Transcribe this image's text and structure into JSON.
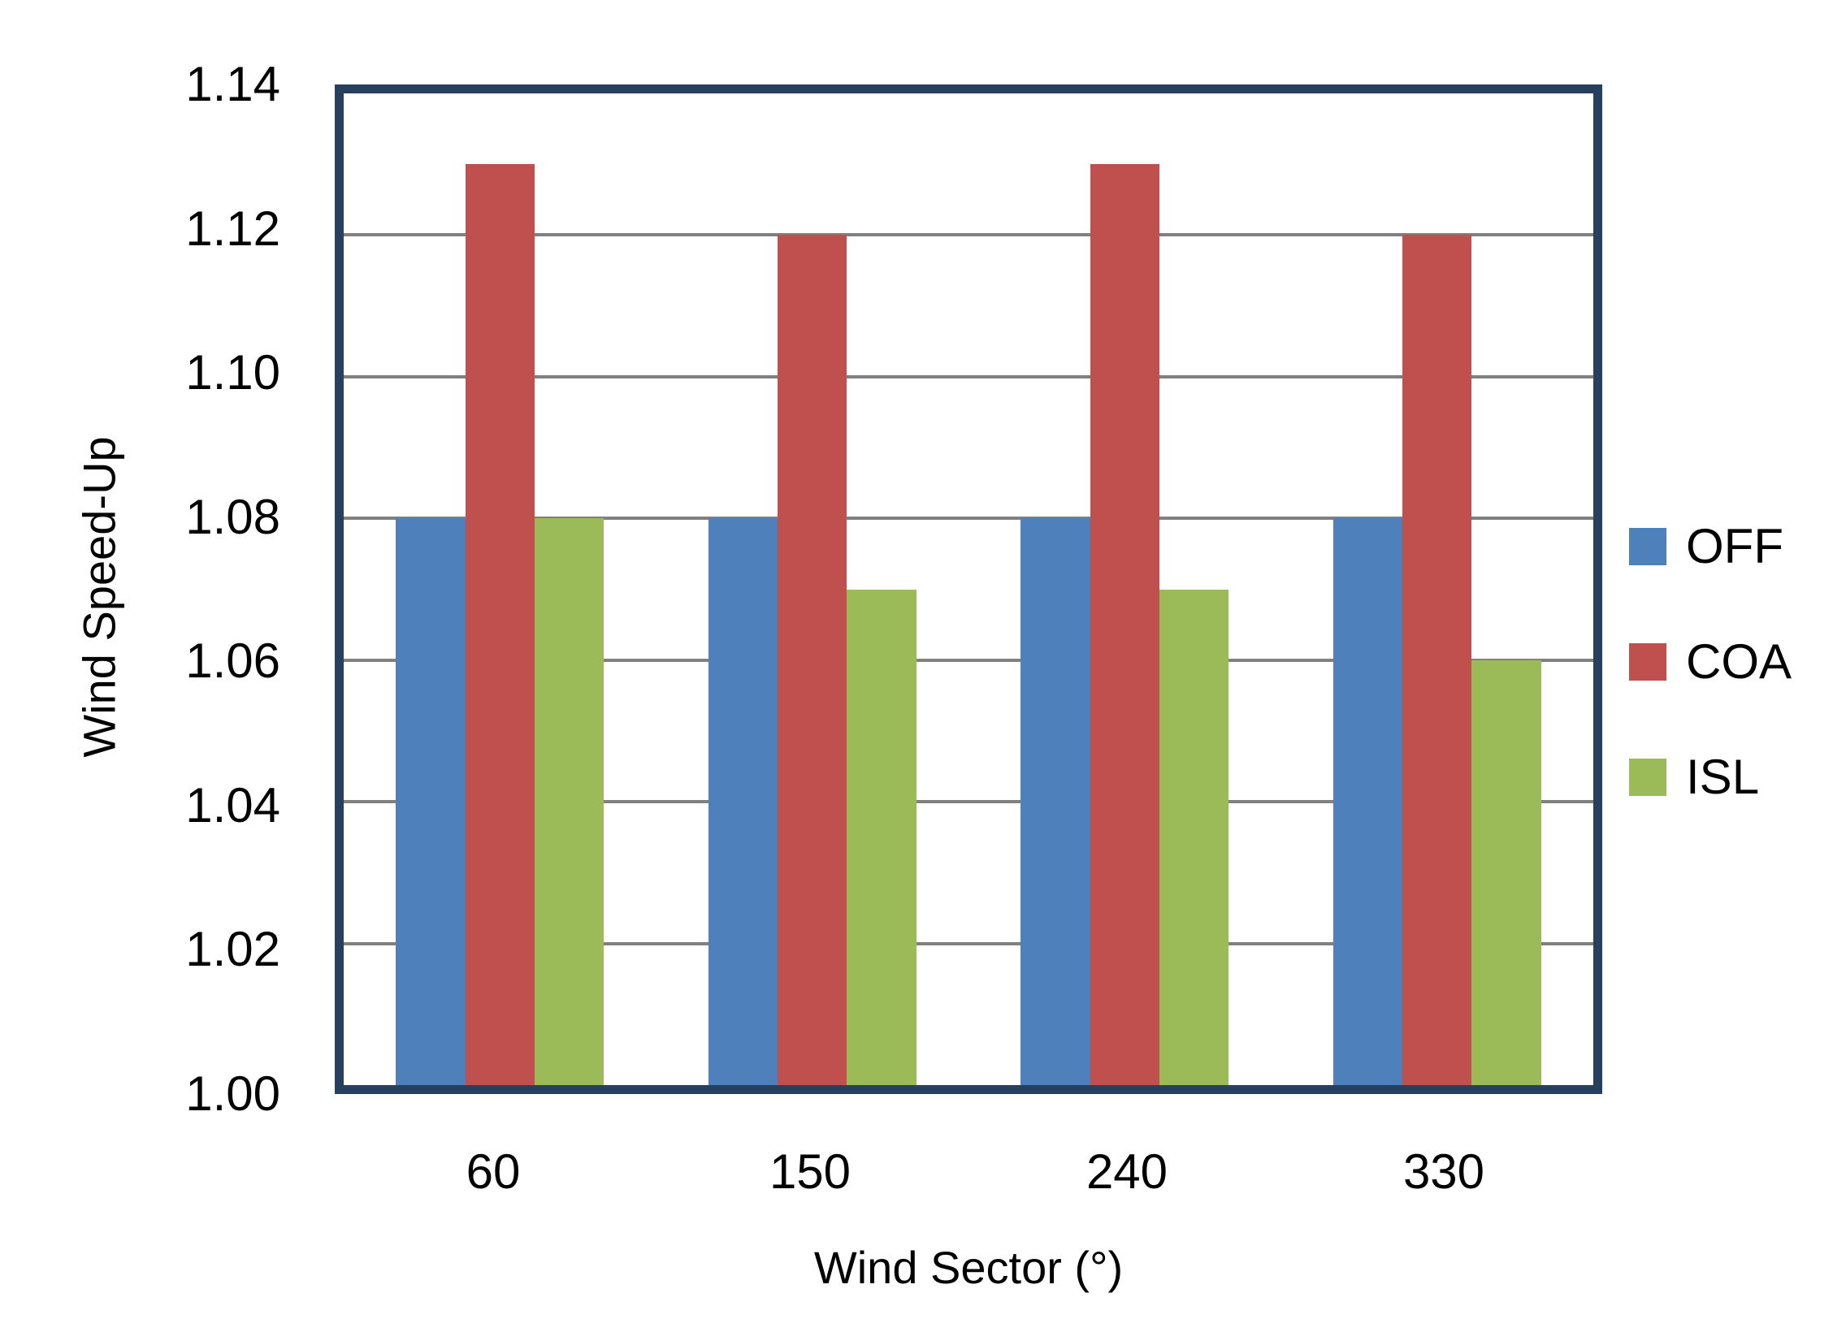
{
  "chart_data": {
    "type": "bar",
    "title": "",
    "categories": [
      "60",
      "150",
      "240",
      "330"
    ],
    "series": [
      {
        "name": "OFF",
        "color": "#4E81BC",
        "values": [
          1.08,
          1.08,
          1.08,
          1.08
        ]
      },
      {
        "name": "COA",
        "color": "#C0504D",
        "values": [
          1.13,
          1.12,
          1.13,
          1.12
        ]
      },
      {
        "name": "ISL",
        "color": "#9BBB59",
        "values": [
          1.08,
          1.07,
          1.07,
          1.06
        ]
      }
    ],
    "xlabel": "Wind Sector (°)",
    "ylabel": "Wind Speed-Up",
    "ylim": [
      1.0,
      1.14
    ],
    "y_tick_step": 0.02,
    "y_tick_labels": [
      "1.00",
      "1.02",
      "1.04",
      "1.06",
      "1.08",
      "1.10",
      "1.12",
      "1.14"
    ],
    "grid": true,
    "legend_position": "right",
    "colors": {
      "plot_border": "#27405F",
      "gridline": "#808080",
      "background": "#FFFFFF",
      "text": "#000000"
    }
  }
}
